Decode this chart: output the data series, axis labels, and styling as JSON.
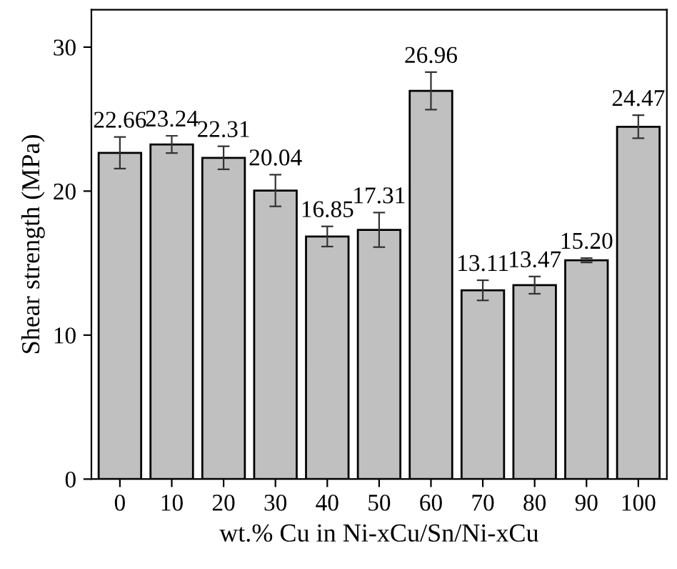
{
  "chart_data": {
    "type": "bar",
    "xlabel": "wt.% Cu in Ni-xCu/Sn/Ni-xCu",
    "ylabel": "Shear strength (MPa)",
    "categories": [
      "0",
      "10",
      "20",
      "30",
      "40",
      "50",
      "60",
      "70",
      "80",
      "90",
      "100"
    ],
    "values": [
      22.66,
      23.24,
      22.31,
      20.04,
      16.85,
      17.31,
      26.96,
      13.11,
      13.47,
      15.2,
      24.47
    ],
    "value_labels": [
      "22.66",
      "23.24",
      "22.31",
      "20.04",
      "16.85",
      "17.31",
      "26.96",
      "13.11",
      "13.47",
      "15.20",
      "24.47"
    ],
    "errors": [
      1.1,
      0.6,
      0.8,
      1.1,
      0.7,
      1.2,
      1.3,
      0.7,
      0.6,
      0.15,
      0.8
    ],
    "color": "#c0c0c0",
    "ylim": [
      0,
      32.6
    ],
    "yticks": [
      0,
      10,
      20,
      30
    ],
    "grid": false,
    "legend": false
  }
}
